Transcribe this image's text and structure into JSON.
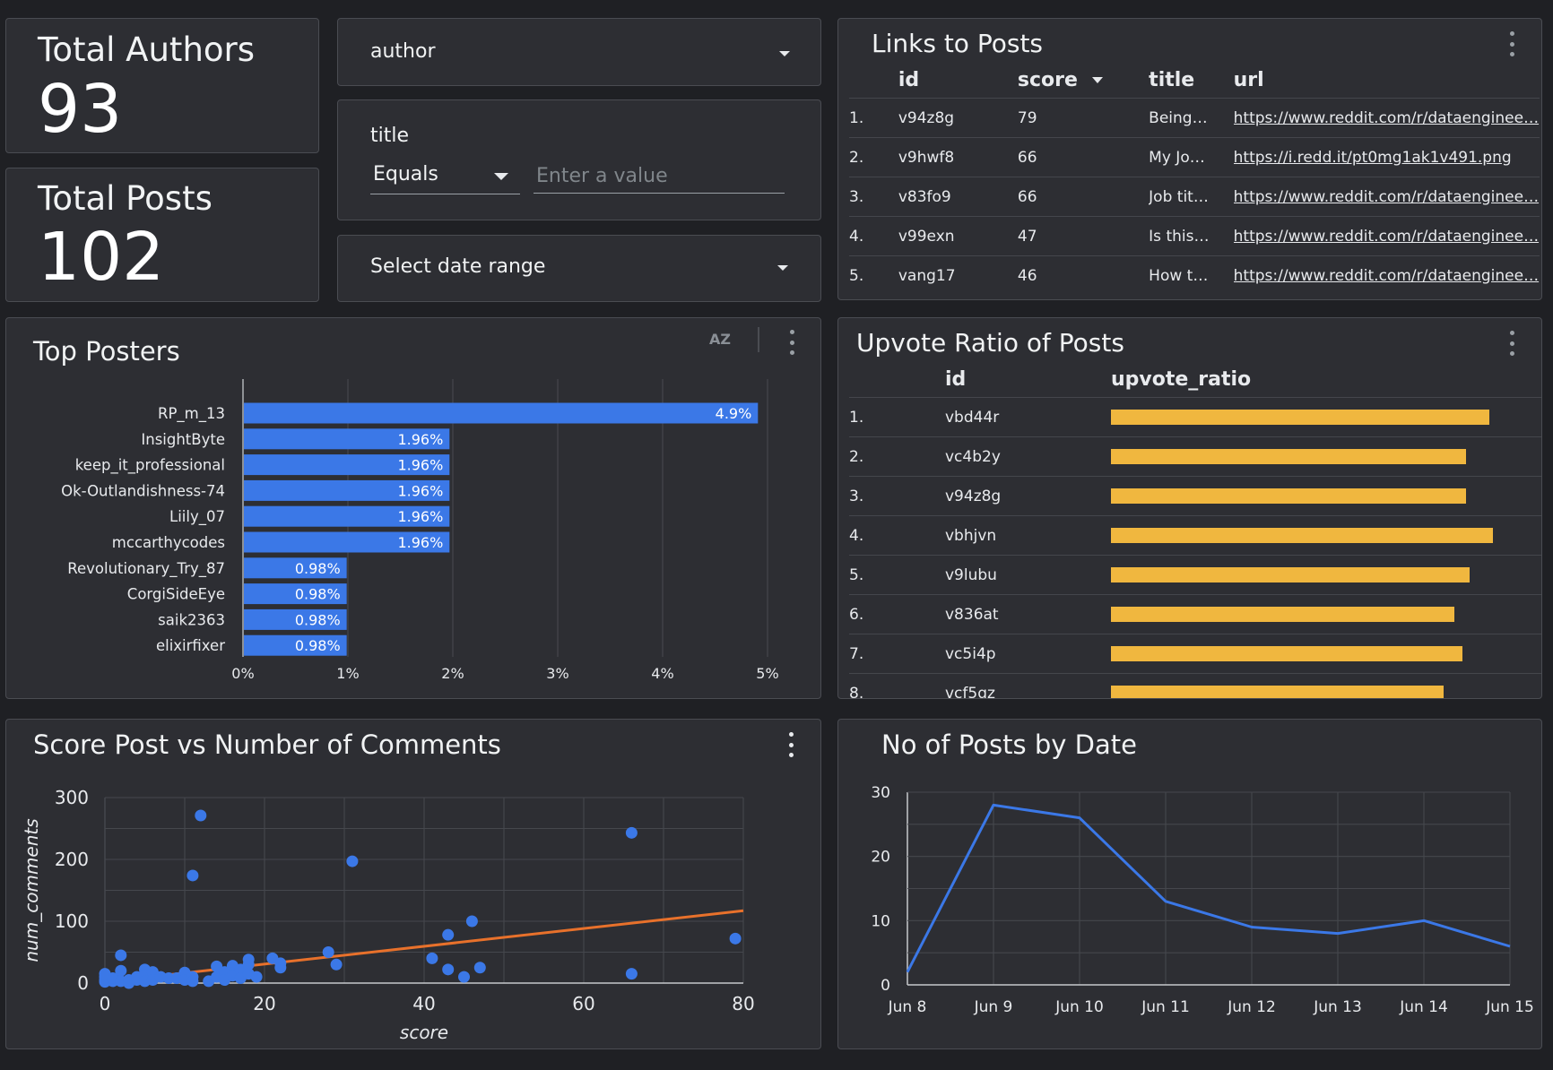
{
  "kpis": {
    "authors": {
      "label": "Total Authors",
      "value": "93"
    },
    "posts": {
      "label": "Total Posts",
      "value": "102"
    }
  },
  "filters": {
    "author": {
      "label": "author"
    },
    "title": {
      "label": "title",
      "operator": "Equals",
      "placeholder": "Enter a value"
    },
    "date": {
      "label": "Select date range"
    }
  },
  "links_table": {
    "title": "Links to Posts",
    "columns": {
      "id": "id",
      "score": "score",
      "title": "title",
      "url": "url"
    },
    "rows": [
      {
        "n": "1.",
        "id": "v94z8g",
        "score": "79",
        "title": "Being…",
        "url": "https://www.reddit.com/r/dataenginee…"
      },
      {
        "n": "2.",
        "id": "v9hwf8",
        "score": "66",
        "title": "My Jo…",
        "url": "https://i.redd.it/pt0mg1ak1v491.png"
      },
      {
        "n": "3.",
        "id": "v83fo9",
        "score": "66",
        "title": "Job tit…",
        "url": "https://www.reddit.com/r/dataenginee…"
      },
      {
        "n": "4.",
        "id": "v99exn",
        "score": "47",
        "title": "Is this…",
        "url": "https://www.reddit.com/r/dataenginee…"
      },
      {
        "n": "5.",
        "id": "vang17",
        "score": "46",
        "title": "How t…",
        "url": "https://www.reddit.com/r/dataenginee…"
      }
    ]
  },
  "upvote_table": {
    "title": "Upvote Ratio of Posts",
    "columns": {
      "id": "id",
      "ratio": "upvote_ratio"
    },
    "bar_color": "#f0b73f",
    "rows": [
      {
        "n": "1.",
        "id": "vbd44r",
        "ratio": 0.99
      },
      {
        "n": "2.",
        "id": "vc4b2y",
        "ratio": 0.93
      },
      {
        "n": "3.",
        "id": "v94z8g",
        "ratio": 0.93
      },
      {
        "n": "4.",
        "id": "vbhjvn",
        "ratio": 1.0
      },
      {
        "n": "5.",
        "id": "v9lubu",
        "ratio": 0.94
      },
      {
        "n": "6.",
        "id": "v836at",
        "ratio": 0.9
      },
      {
        "n": "7.",
        "id": "vc5i4p",
        "ratio": 0.92
      },
      {
        "n": "8.",
        "id": "vcf5qz",
        "ratio": 0.87
      }
    ]
  },
  "top_posters": {
    "title": "Top Posters",
    "sort_label": "AZ",
    "chart_data": {
      "type": "bar",
      "orientation": "horizontal",
      "bar_color": "#3b78e7",
      "categories": [
        "RP_m_13",
        "InsightByte",
        "keep_it_professional",
        "Ok-Outlandishness-74",
        "Liily_07",
        "mccarthycodes",
        "Revolutionary_Try_87",
        "CorgiSideEye",
        "saik2363",
        "elixirfixer"
      ],
      "values": [
        4.9,
        1.96,
        1.96,
        1.96,
        1.96,
        1.96,
        0.98,
        0.98,
        0.98,
        0.98
      ],
      "value_labels": [
        "4.9%",
        "1.96%",
        "1.96%",
        "1.96%",
        "1.96%",
        "1.96%",
        "0.98%",
        "0.98%",
        "0.98%",
        "0.98%"
      ],
      "xlim": [
        0,
        5
      ],
      "x_ticks": [
        "0%",
        "1%",
        "2%",
        "3%",
        "4%",
        "5%"
      ],
      "grid": true
    }
  },
  "scatter": {
    "title": "Score Post vs Number of Comments",
    "chart_data": {
      "type": "scatter",
      "xlabel": "score",
      "ylabel": "num_comments",
      "xlim": [
        0,
        80
      ],
      "ylim": [
        0,
        300
      ],
      "x_ticks": [
        "0",
        "20",
        "40",
        "60",
        "80"
      ],
      "y_ticks": [
        "0",
        "100",
        "200",
        "300"
      ],
      "point_color": "#3b78e7",
      "trend_color": "#e8712b",
      "trendline": {
        "x": [
          0,
          80
        ],
        "y": [
          2,
          117
        ]
      },
      "points": [
        {
          "x": 0,
          "y": 5
        },
        {
          "x": 0,
          "y": 10
        },
        {
          "x": 0,
          "y": 2
        },
        {
          "x": 0,
          "y": 15
        },
        {
          "x": 1,
          "y": 3
        },
        {
          "x": 1,
          "y": 8
        },
        {
          "x": 2,
          "y": 45
        },
        {
          "x": 2,
          "y": 20
        },
        {
          "x": 2,
          "y": 3
        },
        {
          "x": 3,
          "y": 5
        },
        {
          "x": 3,
          "y": 0
        },
        {
          "x": 4,
          "y": 5
        },
        {
          "x": 4,
          "y": 10
        },
        {
          "x": 5,
          "y": 22
        },
        {
          "x": 5,
          "y": 12
        },
        {
          "x": 5,
          "y": 3
        },
        {
          "x": 6,
          "y": 18
        },
        {
          "x": 6,
          "y": 5
        },
        {
          "x": 7,
          "y": 10
        },
        {
          "x": 8,
          "y": 8
        },
        {
          "x": 9,
          "y": 8
        },
        {
          "x": 10,
          "y": 12
        },
        {
          "x": 10,
          "y": 17
        },
        {
          "x": 10,
          "y": 5
        },
        {
          "x": 11,
          "y": 10
        },
        {
          "x": 11,
          "y": 174
        },
        {
          "x": 11,
          "y": 3
        },
        {
          "x": 12,
          "y": 271
        },
        {
          "x": 13,
          "y": 3
        },
        {
          "x": 14,
          "y": 10
        },
        {
          "x": 14,
          "y": 27
        },
        {
          "x": 15,
          "y": 18
        },
        {
          "x": 15,
          "y": 5
        },
        {
          "x": 16,
          "y": 28
        },
        {
          "x": 16,
          "y": 12
        },
        {
          "x": 17,
          "y": 22
        },
        {
          "x": 17,
          "y": 8
        },
        {
          "x": 18,
          "y": 38
        },
        {
          "x": 18,
          "y": 30
        },
        {
          "x": 18,
          "y": 15
        },
        {
          "x": 19,
          "y": 10
        },
        {
          "x": 21,
          "y": 40
        },
        {
          "x": 22,
          "y": 32
        },
        {
          "x": 22,
          "y": 25
        },
        {
          "x": 28,
          "y": 50
        },
        {
          "x": 29,
          "y": 30
        },
        {
          "x": 31,
          "y": 197
        },
        {
          "x": 41,
          "y": 40
        },
        {
          "x": 43,
          "y": 78
        },
        {
          "x": 43,
          "y": 22
        },
        {
          "x": 45,
          "y": 10
        },
        {
          "x": 46,
          "y": 100
        },
        {
          "x": 47,
          "y": 25
        },
        {
          "x": 66,
          "y": 243
        },
        {
          "x": 66,
          "y": 15
        },
        {
          "x": 79,
          "y": 72
        }
      ]
    }
  },
  "posts_by_date": {
    "title": "No of Posts by Date",
    "chart_data": {
      "type": "line",
      "line_color": "#3b78e7",
      "categories": [
        "Jun 8",
        "Jun 9",
        "Jun 10",
        "Jun 11",
        "Jun 12",
        "Jun 13",
        "Jun 14",
        "Jun 15"
      ],
      "values": [
        2,
        28,
        26,
        13,
        9,
        8,
        10,
        6
      ],
      "ylim": [
        0,
        30
      ],
      "y_ticks": [
        "0",
        "10",
        "20",
        "30"
      ],
      "grid": true
    }
  }
}
